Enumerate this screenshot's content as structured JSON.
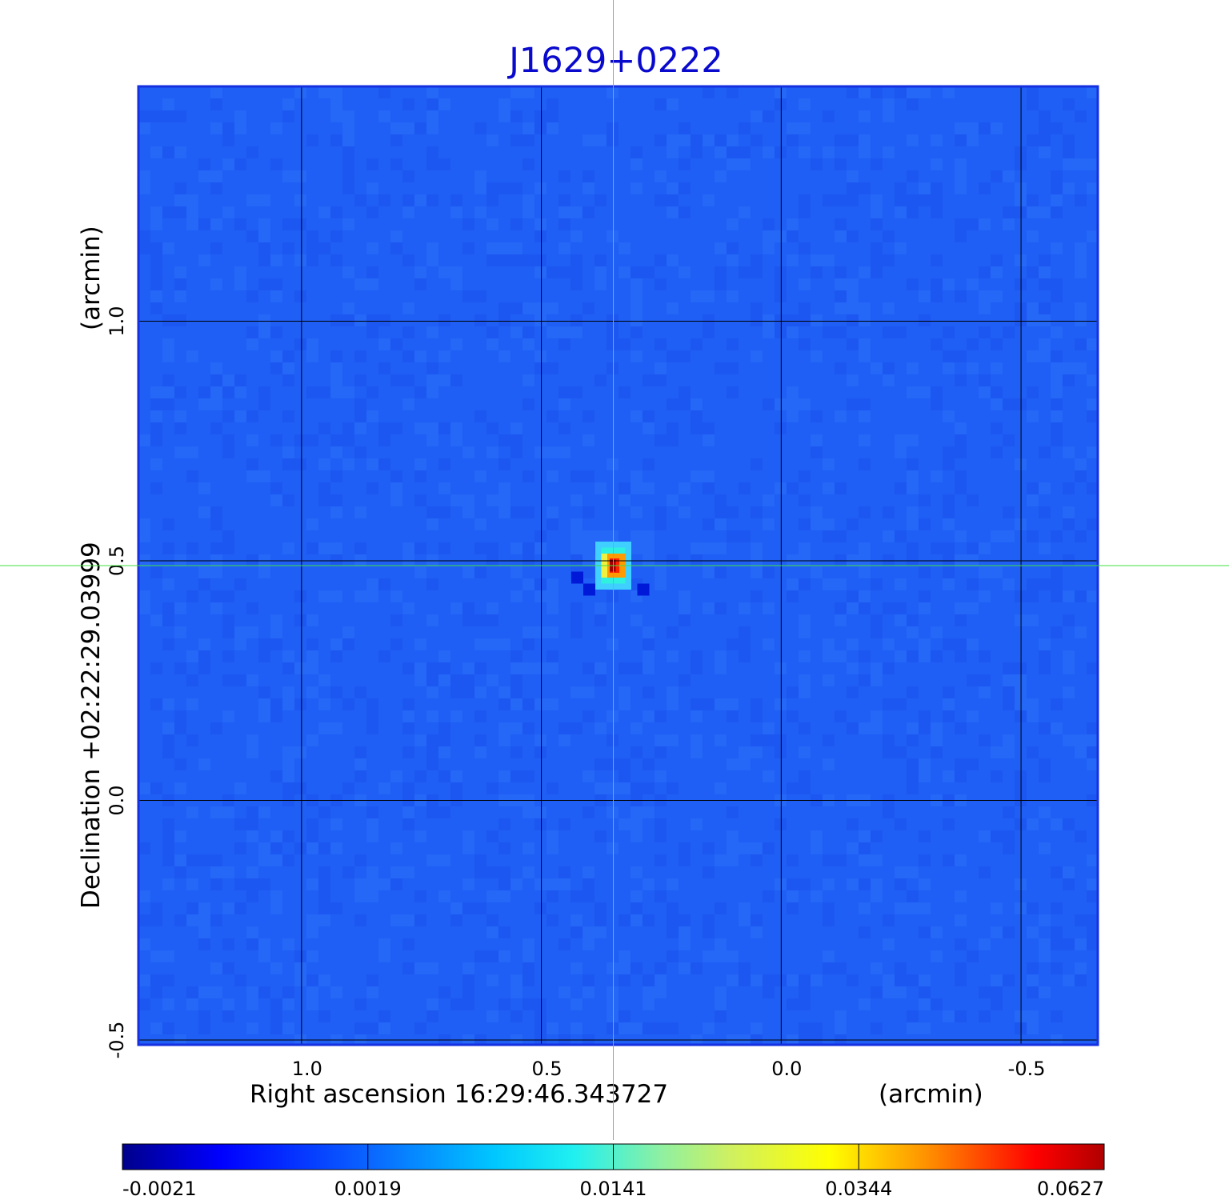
{
  "chart_data": {
    "type": "heatmap",
    "title": "J1629+0222",
    "title_color": "#0a0acd",
    "xlabel": "Right ascension  16:29:46.343727",
    "xunit": "(arcmin)",
    "ylabel": "Declination  +02:22:29.03999",
    "yunit": "(arcmin)",
    "xlim": [
      1.34,
      -0.66
    ],
    "ylim": [
      -0.51,
      1.49
    ],
    "x_ticks": [
      1.0,
      0.5,
      0.0,
      -0.5
    ],
    "x_tick_labels": [
      "1.0",
      "0.5",
      "0.0",
      "-0.5"
    ],
    "y_ticks": [
      -0.5,
      0.0,
      0.5,
      1.0
    ],
    "y_tick_labels": [
      "-0.5",
      "0.0",
      "0.5",
      "1.0"
    ],
    "grid": true,
    "crosshair": {
      "x": 0.35,
      "y": 0.49,
      "color": "#40e040"
    },
    "source_peak": {
      "x": 0.35,
      "y": 0.49,
      "value": 0.0627
    },
    "colormap": "jet",
    "colorbar": {
      "ticks": [
        -0.0021,
        0.0019,
        0.0141,
        0.0344,
        0.0627
      ],
      "tick_labels": [
        "-0.0021",
        "0.0019",
        "0.0141",
        "0.0344",
        "0.0627"
      ]
    },
    "background_color": "#1f5ff5",
    "border_color": "#1530e0"
  }
}
